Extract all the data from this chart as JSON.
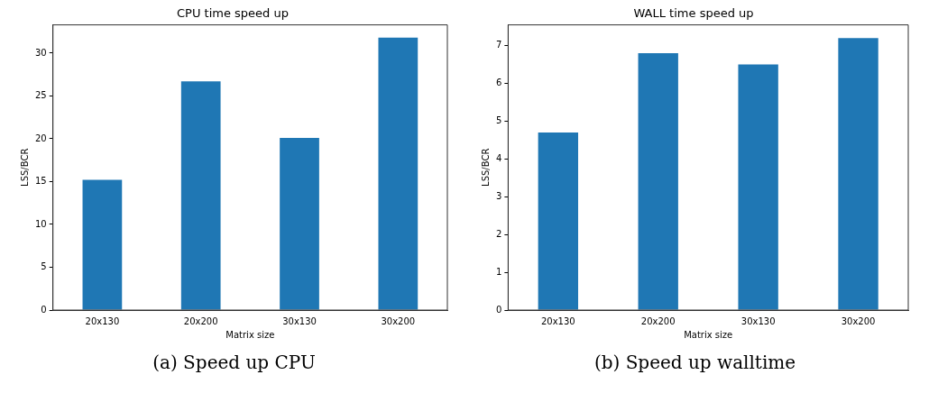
{
  "chart_data": [
    {
      "type": "bar",
      "title": "CPU time speed up",
      "xlabel": "Matrix size",
      "ylabel": "LSS/BCR",
      "categories": [
        "20x130",
        "20x200",
        "30x130",
        "30x200"
      ],
      "values": [
        15.2,
        26.7,
        20.1,
        31.8
      ],
      "color": "#1f77b4",
      "ylim": [
        0,
        33.3
      ],
      "yticks": [
        0,
        5,
        10,
        15,
        20,
        25,
        30
      ],
      "grid": false,
      "legend": false,
      "annotations": [
        "(a) Speed up CPU"
      ]
    },
    {
      "type": "bar",
      "title": "WALL time speed up",
      "xlabel": "Matrix size",
      "ylabel": "LSS/BCR",
      "categories": [
        "20x130",
        "20x200",
        "30x130",
        "30x200"
      ],
      "values": [
        4.7,
        6.8,
        6.5,
        7.2
      ],
      "color": "#1f77b4",
      "ylim": [
        0,
        7.55
      ],
      "yticks": [
        0,
        1,
        2,
        3,
        4,
        5,
        6,
        7
      ],
      "grid": false,
      "legend": false,
      "annotations": [
        "(b) Speed up walltime"
      ]
    }
  ]
}
